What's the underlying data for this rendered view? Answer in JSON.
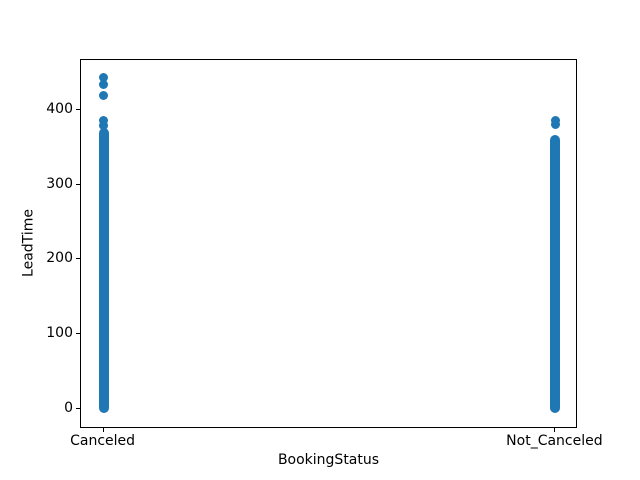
{
  "chart_data": {
    "type": "scatter",
    "title": "",
    "xlabel": "BookingStatus",
    "ylabel": "LeadTime",
    "categories": [
      "Canceled",
      "Not_Canceled"
    ],
    "x_positions": [
      0,
      1
    ],
    "y_ticks": [
      0,
      100,
      200,
      300,
      400
    ],
    "xlim": [
      -0.05,
      1.05
    ],
    "ylim": [
      -27,
      467
    ],
    "grid": false,
    "legend": "none",
    "marker_color": "#1f77b4",
    "series": [
      {
        "name": "Canceled",
        "x": 0,
        "dense_min": 0,
        "dense_max": 370,
        "outliers": [
          379,
          386,
          420,
          434,
          443
        ]
      },
      {
        "name": "Not_Canceled",
        "x": 1,
        "dense_min": 0,
        "dense_max": 361,
        "outliers": [
          380,
          386
        ]
      }
    ]
  }
}
